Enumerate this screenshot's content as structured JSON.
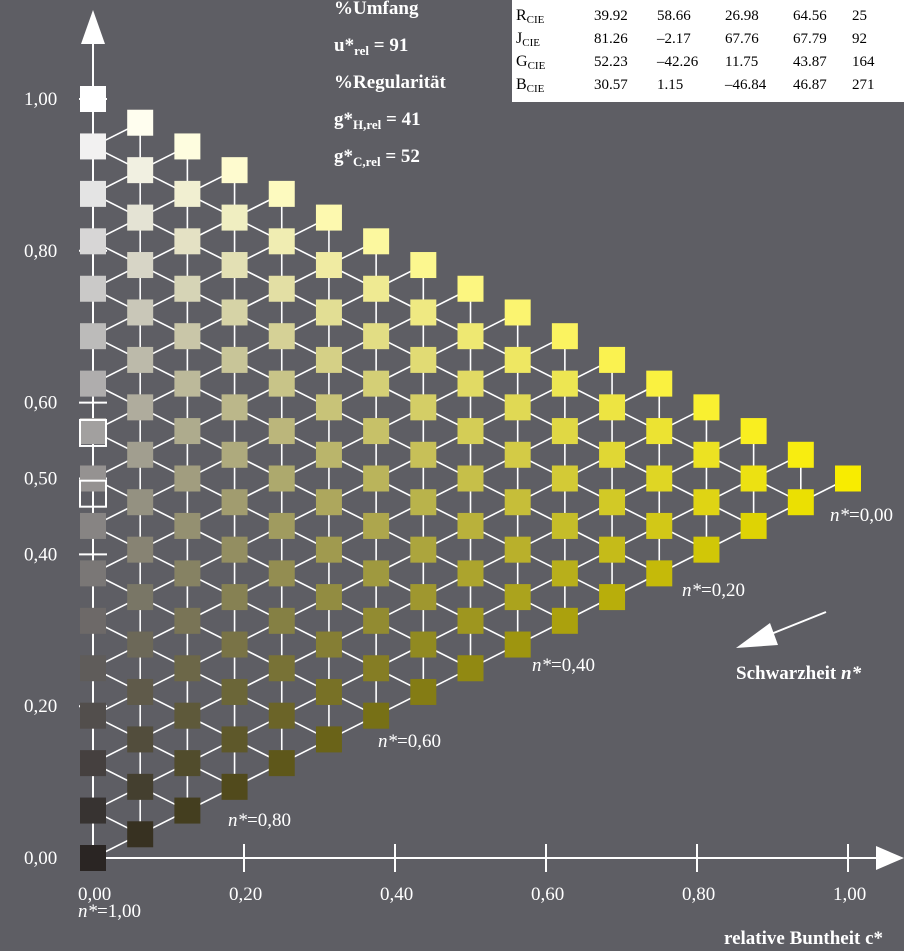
{
  "chart_data": {
    "type": "scatter",
    "title": "",
    "xlabel": "relative Buntheit c*",
    "ylabel": "",
    "xlim": [
      0,
      1
    ],
    "ylim": [
      0,
      1
    ],
    "x_ticks": [
      "0,00",
      "0,20",
      "0,40",
      "0,60",
      "0,80",
      "1,00"
    ],
    "y_ticks": [
      "0,00",
      "0,20",
      "0,40",
      "0,50",
      "0,60",
      "0,80",
      "1,00"
    ],
    "grid": "triangular 16 steps, white connecting lines",
    "black_dot_color": "#2a2523",
    "white_dot_color": "#ffffff",
    "yellow_dot_color": "#f8ec00",
    "blackness_labels": [
      {
        "n": "n*",
        "v": "=1,00",
        "at": 0.0
      },
      {
        "n": "n*",
        "v": "=0,80",
        "at": 0.8
      },
      {
        "n": "n*",
        "v": "=0,60",
        "at": 0.6
      },
      {
        "n": "n*",
        "v": "=0,40",
        "at": 0.4
      },
      {
        "n": "n*",
        "v": "=0,20",
        "at": 0.2
      },
      {
        "n": "n*",
        "v": "=0,00",
        "at": 0.0
      }
    ],
    "arrow_label": {
      "text": "Schwarzheit ",
      "var": "n*"
    },
    "side_stats": {
      "umfang": "%Umfang",
      "u_rel": "u*",
      "u_rel_sub": "rel",
      "u_rel_val": " = 91",
      "regularitaet": "%Regularität",
      "gH_rel": "g*",
      "gH_rel_sub": "H,rel",
      "gH_rel_val": " = 41",
      "gC_rel": "g*",
      "gC_rel_sub": "C,rel",
      "gC_rel_val": " = 52"
    },
    "cie_table": [
      {
        "name": "R",
        "sub": "CIE",
        "values": [
          "39.92",
          "58.66",
          "26.98",
          "64.56",
          "25"
        ]
      },
      {
        "name": "J",
        "sub": "CIE",
        "values": [
          "81.26",
          "–2.17",
          "67.76",
          "67.79",
          "92"
        ]
      },
      {
        "name": "G",
        "sub": "CIE",
        "values": [
          "52.23",
          "–42.26",
          "11.75",
          "43.87",
          "164"
        ]
      },
      {
        "name": "B",
        "sub": "CIE",
        "values": [
          "30.57",
          "1.15",
          "–46.84",
          "46.87",
          "271"
        ]
      }
    ]
  }
}
